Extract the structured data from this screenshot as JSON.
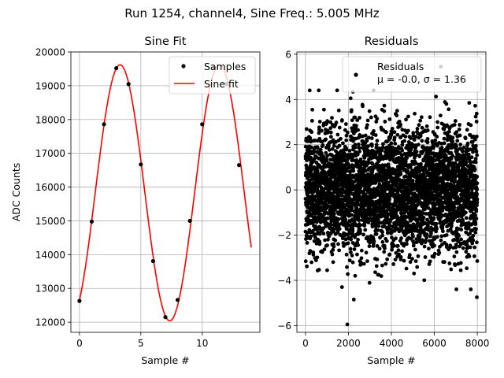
{
  "suptitle": "Run 1254, channel4, Sine Freq.: 5.005 MHz",
  "chart_data": [
    {
      "type": "line",
      "title": "Sine Fit",
      "xlabel": "Sample #",
      "ylabel": "ADC Counts",
      "xlim": [
        -0.7,
        14.7
      ],
      "ylim": [
        11700,
        20000
      ],
      "xticks": [
        0,
        5,
        10
      ],
      "yticks": [
        12000,
        13000,
        14000,
        15000,
        16000,
        17000,
        18000,
        19000,
        20000
      ],
      "grid": true,
      "legend_position": "top-right",
      "series": [
        {
          "name": "Samples",
          "style": "points",
          "color": "#000000",
          "x": [
            0,
            1,
            2,
            3,
            4,
            5,
            6,
            7,
            8,
            9,
            10,
            11,
            12,
            13
          ],
          "y": [
            12630,
            14980,
            17860,
            19520,
            19050,
            16670,
            13810,
            12150,
            12660,
            15000,
            17860,
            19520,
            19050,
            16650
          ]
        },
        {
          "name": "Sine fit",
          "style": "line",
          "color": "#ff0000",
          "model": {
            "offset": 15830,
            "amplitude": 3790,
            "samples_per_period": 8.1,
            "phase": -0.994,
            "x_start": 0,
            "x_end": 14,
            "step": 0.05
          }
        }
      ]
    },
    {
      "type": "scatter",
      "title": "Residuals",
      "xlabel": "Sample #",
      "ylabel": "",
      "xlim": [
        -400,
        8400
      ],
      "ylim": [
        -6.3,
        6.1
      ],
      "xticks": [
        0,
        2000,
        4000,
        6000,
        8000
      ],
      "yticks": [
        -6,
        -4,
        -2,
        0,
        2,
        4,
        6
      ],
      "grid": true,
      "legend_position": "top-right",
      "series": [
        {
          "name": "Residuals",
          "color": "#000000",
          "n_points": 8000,
          "mean": -0.0,
          "sigma": 1.36,
          "x_range": [
            0,
            7999
          ],
          "outliers": [
            [
              1950,
              -5.95
            ],
            [
              2250,
              -4.85
            ],
            [
              6300,
              5.45
            ],
            [
              7980,
              -4.75
            ],
            [
              1700,
              -4.3
            ]
          ]
        }
      ],
      "legend_stats": "μ = -0.0, σ = 1.36"
    }
  ]
}
